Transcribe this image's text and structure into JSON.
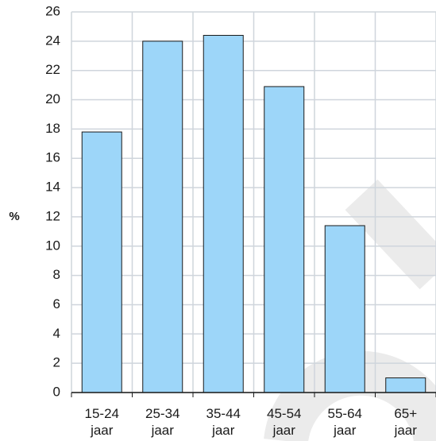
{
  "chart_data": {
    "type": "bar",
    "categories": [
      [
        "15-24",
        "jaar"
      ],
      [
        "25-34",
        "jaar"
      ],
      [
        "35-44",
        "jaar"
      ],
      [
        "45-54",
        "jaar"
      ],
      [
        "55-64",
        "jaar"
      ],
      [
        "65+",
        "jaar"
      ]
    ],
    "values": [
      17.8,
      24.0,
      24.4,
      20.9,
      11.4,
      1.0
    ],
    "ylabel": "%",
    "ylim": [
      0,
      26
    ],
    "yticks": [
      "0",
      "2",
      "4",
      "6",
      "8",
      "10",
      "12",
      "14",
      "16",
      "18",
      "20",
      "22",
      "24",
      "26"
    ],
    "grid": true,
    "colors": {
      "bar_fill": "#9dd6f9",
      "bar_stroke": "#1a1a1a",
      "grid": "#cfd5dc",
      "axis": "#1a1a1a",
      "watermark": "#ebebeb"
    }
  }
}
